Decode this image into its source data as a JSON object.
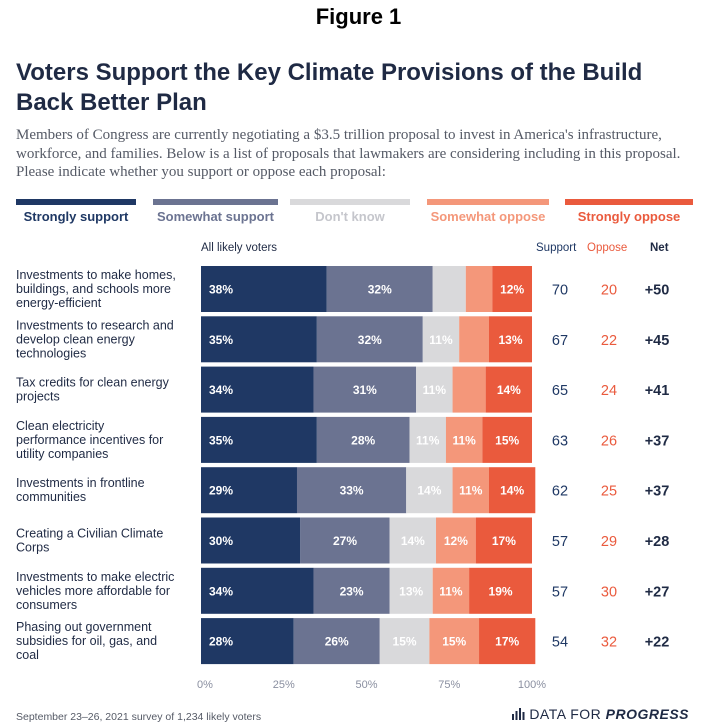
{
  "figure_label": "Figure 1",
  "chart_data": {
    "type": "bar",
    "orientation": "horizontal",
    "stacked": true,
    "title": "Voters Support the Key Climate Provisions of the Build Back Better Plan",
    "subtitle": "Members of Congress are currently negotiating a $3.5 trillion proposal to invest in America's infrastructure, workforce, and families. Below is a list of proposals that lawmakers are considering including in this proposal. Please indicate whether you support or oppose each proposal:",
    "group_label": "All likely voters",
    "legend_position": "top",
    "xlim": [
      0,
      100
    ],
    "x_ticks": [
      "0%",
      "25%",
      "50%",
      "75%",
      "100%"
    ],
    "categories": [
      "Investments to make homes, buildings, and schools more energy-efficient",
      "Investments to research and develop clean energy technologies",
      "Tax credits for clean energy projects",
      "Clean electricity performance incentives for utility companies",
      "Investments in frontline communities",
      "Creating a Civilian Climate Corps",
      "Investments to make electric vehicles more affordable for consumers",
      "Phasing out government subsidies for oil, gas, and coal"
    ],
    "series": [
      {
        "name": "Strongly support",
        "color": "#1f3864",
        "values": [
          38,
          35,
          34,
          35,
          29,
          30,
          34,
          28
        ],
        "labels": [
          "38%",
          "35%",
          "34%",
          "35%",
          "29%",
          "30%",
          "34%",
          "28%"
        ]
      },
      {
        "name": "Somewhat support",
        "color": "#6b7391",
        "values": [
          32,
          32,
          31,
          28,
          33,
          27,
          23,
          26
        ],
        "labels": [
          "32%",
          "32%",
          "31%",
          "28%",
          "33%",
          "27%",
          "23%",
          "26%"
        ]
      },
      {
        "name": "Don't know",
        "color": "#d9d9db",
        "values": [
          10,
          11,
          11,
          11,
          14,
          14,
          13,
          15
        ],
        "labels": [
          "",
          "11%",
          "11%",
          "11%",
          "14%",
          "14%",
          "13%",
          "15%"
        ]
      },
      {
        "name": "Somewhat oppose",
        "color": "#f4977a",
        "values": [
          8,
          9,
          10,
          11,
          11,
          12,
          11,
          15
        ],
        "labels": [
          "",
          "",
          "",
          "11%",
          "11%",
          "12%",
          "11%",
          "15%"
        ]
      },
      {
        "name": "Strongly oppose",
        "color": "#ea5a3d",
        "values": [
          12,
          13,
          14,
          15,
          14,
          17,
          19,
          17
        ],
        "labels": [
          "12%",
          "13%",
          "14%",
          "15%",
          "14%",
          "17%",
          "19%",
          "17%"
        ]
      }
    ],
    "summary_headers": {
      "support": "Support",
      "oppose": "Oppose",
      "net": "Net"
    },
    "support": [
      "70",
      "67",
      "65",
      "63",
      "62",
      "57",
      "57",
      "54"
    ],
    "oppose": [
      "20",
      "22",
      "24",
      "26",
      "25",
      "29",
      "30",
      "32"
    ],
    "net": [
      "+50",
      "+45",
      "+41",
      "+37",
      "+37",
      "+28",
      "+27",
      "+22"
    ]
  },
  "footer": {
    "source": "September 23–26, 2021 survey of 1,234 likely voters",
    "brand_prefix": "DATA FOR",
    "brand_emphasis": "PROGRESS",
    "brand_icon": "bar-chart-icon"
  },
  "colors": {
    "label_dark": "#1f2a44",
    "support_text": "#1f3864",
    "oppose_text": "#ea5a3d",
    "muted": "#8a8fa0"
  }
}
